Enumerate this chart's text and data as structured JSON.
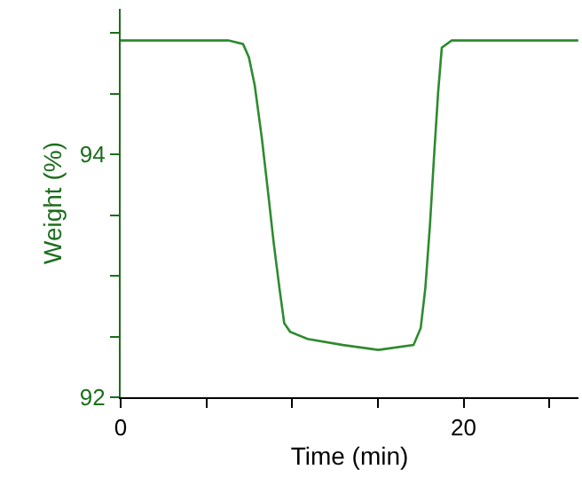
{
  "chart_data": {
    "type": "line",
    "xlabel": "Time (min)",
    "ylabel": "Weight (%)",
    "x": [
      0,
      6.28,
      7.14,
      7.48,
      7.82,
      8.23,
      8.58,
      8.92,
      9.26,
      9.54,
      9.88,
      10.9,
      12.97,
      15.03,
      17.08,
      17.5,
      17.77,
      18.04,
      18.28,
      18.52,
      18.73,
      19.31,
      26.69
    ],
    "series": [
      {
        "color": "#2e8b2e",
        "values": [
          94.94,
          94.94,
          94.91,
          94.8,
          94.57,
          94.14,
          93.71,
          93.28,
          92.9,
          92.61,
          92.54,
          92.48,
          92.43,
          92.39,
          92.43,
          92.57,
          92.9,
          93.42,
          93.99,
          94.52,
          94.88,
          94.94,
          94.94
        ]
      }
    ],
    "xlim": [
      0,
      26.7
    ],
    "ylim": [
      92,
      95.2
    ],
    "xticks": [
      0,
      {
        "value": 5,
        "label": null
      },
      {
        "value": 10,
        "label": null
      },
      {
        "value": 15,
        "label": null
      },
      20,
      {
        "value": 25,
        "label": null
      }
    ],
    "yticks": [
      92,
      {
        "value": 92.5,
        "label": null
      },
      {
        "value": 93,
        "label": null
      },
      {
        "value": 93.5,
        "label": null
      },
      94,
      {
        "value": 94.5,
        "label": null
      },
      {
        "value": 95,
        "label": null
      }
    ],
    "marker": "none",
    "line_style": "solid"
  }
}
